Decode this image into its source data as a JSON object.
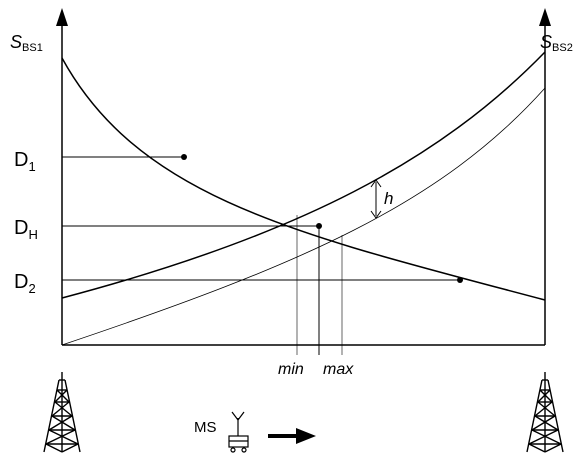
{
  "axes": {
    "left_label": "S",
    "left_sub": "BS1",
    "right_label": "S",
    "right_sub": "BS2"
  },
  "levels": {
    "d1": "D",
    "d1_sub": "1",
    "dh": "D",
    "dh_sub": "H",
    "d2": "D",
    "d2_sub": "2"
  },
  "hysteresis_label": "h",
  "min_label": "min",
  "max_label": "max",
  "mobile_label": "MS",
  "icons": {
    "towers": "radio-tower-icon",
    "mobile": "mobile-station-icon",
    "arrow": "arrow-right-icon"
  }
}
